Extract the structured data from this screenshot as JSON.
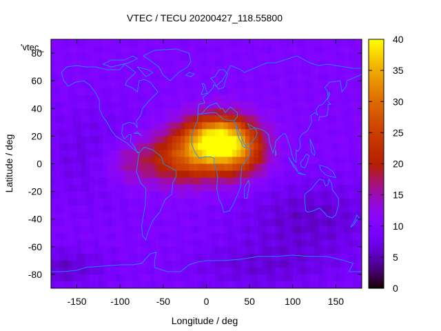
{
  "chart_data": {
    "type": "heatmap",
    "title": "VTEC / TECU 20200427_118.55800",
    "xlabel": "Longitude / deg",
    "ylabel": "Latitude / deg",
    "xlim": [
      -180,
      180
    ],
    "ylim": [
      -90,
      90
    ],
    "x_ticks": [
      -150,
      -100,
      -50,
      0,
      50,
      100,
      150
    ],
    "y_ticks": [
      -80,
      -60,
      -40,
      -20,
      0,
      20,
      40,
      60,
      80
    ],
    "colorbar": {
      "range": [
        0,
        40
      ],
      "ticks": [
        0,
        5,
        10,
        15,
        20,
        25,
        30,
        35,
        40
      ],
      "colormap": "gnuplot-default-rgbformulae-7-5-15"
    },
    "legend_entry": "'vtec_",
    "grid": false,
    "field_model": {
      "description": "approximate VTEC field estimated from color: background ~10 TECU, equatorial anomaly crest peaking ~37 TECU near lon 15, lat 18",
      "background": 10,
      "components": [
        {
          "lon": 15,
          "lat": 18,
          "amp": 27,
          "sx": 28,
          "sy": 12
        },
        {
          "lon": -20,
          "lat": 4,
          "amp": 15,
          "sx": 35,
          "sy": 13
        },
        {
          "lon": 40,
          "lat": 5,
          "amp": 9,
          "sx": 22,
          "sy": 12
        },
        {
          "lon": -90,
          "lat": 0,
          "amp": 5,
          "sx": 25,
          "sy": 12
        },
        {
          "lon": 120,
          "lat": -40,
          "amp": -4,
          "sx": 60,
          "sy": 20
        },
        {
          "lon": -130,
          "lat": 5,
          "amp": -3,
          "sx": 40,
          "sy": 25
        },
        {
          "lon": -170,
          "lat": -75,
          "amp": -4,
          "sx": 40,
          "sy": 10
        },
        {
          "lon": 60,
          "lat": -75,
          "amp": -3,
          "sx": 60,
          "sy": 12
        }
      ]
    }
  },
  "colors": {
    "coastline": "#1e90ff",
    "axis": "#000000",
    "background": "#ffffff"
  }
}
